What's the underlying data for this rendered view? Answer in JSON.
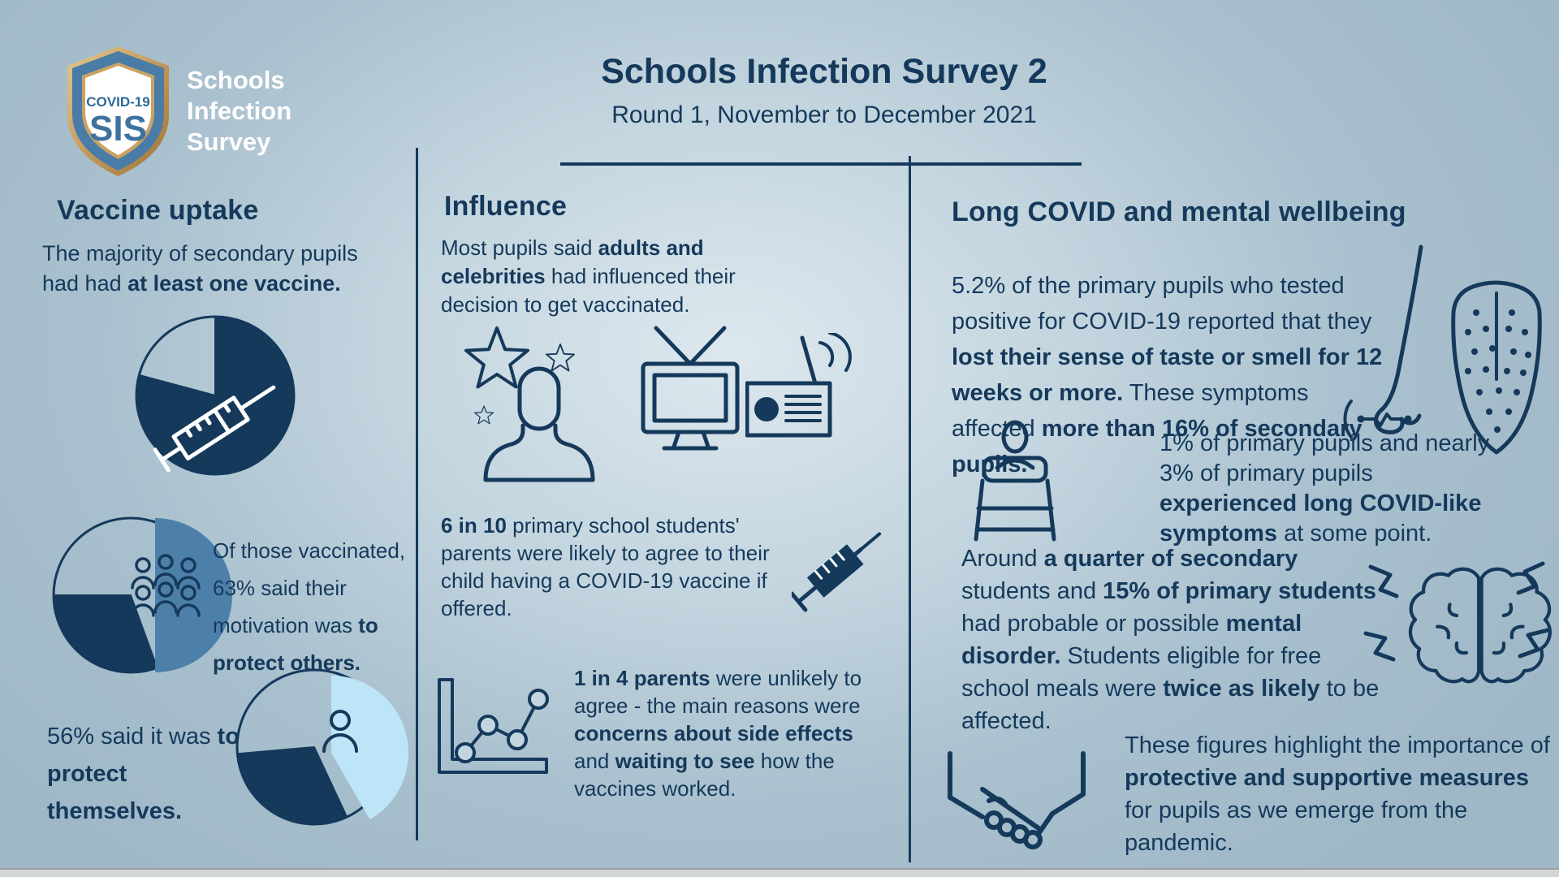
{
  "header": {
    "title": "Schools Infection Survey 2",
    "subtitle": "Round 1, November to December 2021"
  },
  "logo": {
    "badge_top": "COVID-19",
    "badge_main": "SIS",
    "org_lines": [
      "Schools",
      "Infection",
      "Survey"
    ]
  },
  "colors": {
    "navy": "#15395b",
    "steel_blue": "#4d80a8",
    "light_blue": "#bce5f8",
    "background": "#a9c0ce",
    "logo_gold": "#c39a5e",
    "white": "#ffffff"
  },
  "columns": {
    "vaccine": {
      "heading": "Vaccine uptake",
      "p1": [
        {
          "t": "The majority of secondary pupils had had ",
          "b": false
        },
        {
          "t": "at least one vaccine.",
          "b": true
        }
      ],
      "p2": [
        {
          "t": "Of those vaccinated, 63% said their motivation was ",
          "b": false
        },
        {
          "t": "to protect others.",
          "b": true
        }
      ],
      "p3": [
        {
          "t": "56% said it was ",
          "b": false
        },
        {
          "t": "to protect themselves.",
          "b": true
        }
      ]
    },
    "influence": {
      "heading": "Influence",
      "p1": [
        {
          "t": "Most pupils said ",
          "b": false
        },
        {
          "t": "adults and celebrities",
          "b": true
        },
        {
          "t": " had influenced their decision to get vaccinated.",
          "b": false
        }
      ],
      "p2": [
        {
          "t": "6 in 10",
          "b": true
        },
        {
          "t": " primary school students' parents were likely to agree to their child having a COVID-19 vaccine if offered.",
          "b": false
        }
      ],
      "p3": [
        {
          "t": "1 in 4 parents",
          "b": true
        },
        {
          "t": " were unlikely to agree - the main reasons were ",
          "b": false
        },
        {
          "t": "concerns about side effects",
          "b": true
        },
        {
          "t": " and ",
          "b": false
        },
        {
          "t": "waiting to see",
          "b": true
        },
        {
          "t": " how the vaccines worked.",
          "b": false
        }
      ]
    },
    "longcovid": {
      "heading": "Long COVID and mental wellbeing",
      "p1": [
        {
          "t": "5.2% of the primary pupils who tested positive for COVID-19 reported that they ",
          "b": false
        },
        {
          "t": "lost their sense of taste or smell for 12 weeks or more.",
          "b": true
        },
        {
          "t": " These symptoms affected ",
          "b": false
        },
        {
          "t": "more than 16% of secondary pupils.",
          "b": true
        }
      ],
      "p2": [
        {
          "t": "1% of primary pupils and nearly 3% of primary pupils ",
          "b": false
        },
        {
          "t": "experienced long COVID-like symptoms",
          "b": true
        },
        {
          "t": " at some point.",
          "b": false
        }
      ],
      "p3": [
        {
          "t": "Around ",
          "b": false
        },
        {
          "t": "a quarter of secondary",
          "b": true
        },
        {
          "t": " students and ",
          "b": false
        },
        {
          "t": "15% of primary students",
          "b": true
        },
        {
          "t": " had probable or possible ",
          "b": false
        },
        {
          "t": "mental disorder.",
          "b": true
        },
        {
          "t": " Students eligible for free school meals were ",
          "b": false
        },
        {
          "t": "twice as likely",
          "b": true
        },
        {
          "t": " to be affected.",
          "b": false
        }
      ],
      "p4": [
        {
          "t": "These figures highlight the importance of ",
          "b": false
        },
        {
          "t": "protective and supportive measures",
          "b": true
        },
        {
          "t": " for pupils as we emerge from the pandemic.",
          "b": false
        }
      ]
    }
  },
  "chart_data": [
    {
      "type": "pie",
      "title": "Secondary pupils with at least one vaccine",
      "caption": "The majority of secondary pupils had had at least one vaccine.",
      "slices": [
        {
          "label": "had at least one vaccine (majority, value not labelled)",
          "approx_pct": 79,
          "color": "#15395b"
        },
        {
          "label": "remainder",
          "approx_pct": 21,
          "color": "outline-only"
        }
      ],
      "legend_position": "none"
    },
    {
      "type": "pie",
      "title": "Motivation of vaccinated pupils: protect others",
      "caption": "Of those vaccinated, 63% said their motivation was to protect others.",
      "slices": [
        {
          "label": "to protect others",
          "pct": 63,
          "color": "#4d80a8",
          "exploded": true
        },
        {
          "label": "other / remainder (not labelled)",
          "pct": 37,
          "color": "#15395b and outline-only"
        }
      ],
      "legend_position": "none"
    },
    {
      "type": "pie",
      "title": "Motivation of vaccinated pupils: protect themselves",
      "caption": "56% said it was to protect themselves.",
      "slices": [
        {
          "label": "to protect themselves",
          "pct": 56,
          "color": "#bce5f8",
          "exploded": true
        },
        {
          "label": "other / remainder (not labelled)",
          "pct": 44,
          "color": "#15395b and outline-only"
        }
      ],
      "legend_position": "none"
    }
  ]
}
